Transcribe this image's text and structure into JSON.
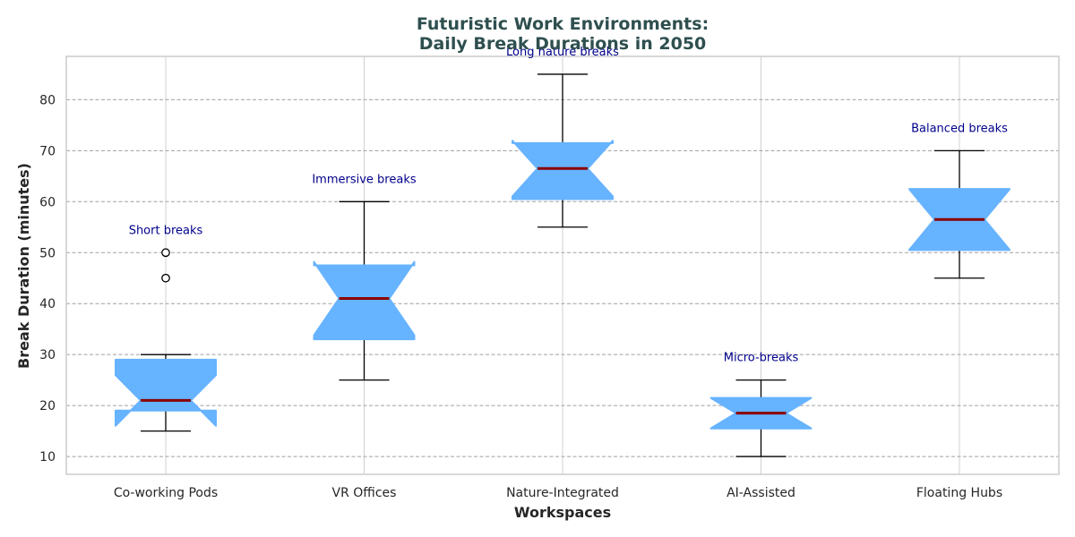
{
  "chart_data": {
    "type": "boxplot",
    "title": "Futuristic Work Environments:\nDaily Break Durations in 2050",
    "xlabel": "Workspaces",
    "ylabel": "Break Duration (minutes)",
    "ylim": [
      6.5,
      88.5
    ],
    "yticks": [
      10,
      20,
      30,
      40,
      50,
      60,
      70,
      80
    ],
    "grid": true,
    "notched": true,
    "categories": [
      "Co-working Pods",
      "VR Offices",
      "Nature-Integrated",
      "AI-Assisted",
      "Floating Hubs"
    ],
    "boxes": [
      {
        "category": "Co-working Pods",
        "whisker_low": 15,
        "q1": 19,
        "median": 21,
        "q3": 29,
        "whisker_high": 30,
        "outliers": [
          45,
          50
        ],
        "annotation": "Short breaks"
      },
      {
        "category": "VR Offices",
        "whisker_low": 25,
        "q1": 33,
        "median": 41,
        "q3": 47.5,
        "whisker_high": 60,
        "outliers": [],
        "annotation": "Immersive breaks"
      },
      {
        "category": "Nature-Integrated",
        "whisker_low": 55,
        "q1": 60.5,
        "median": 66.5,
        "q3": 71.5,
        "whisker_high": 85,
        "outliers": [],
        "annotation": "Long nature breaks"
      },
      {
        "category": "AI-Assisted",
        "whisker_low": 10,
        "q1": 15.5,
        "median": 18.5,
        "q3": 21.5,
        "whisker_high": 25,
        "outliers": [],
        "annotation": "Micro-breaks"
      },
      {
        "category": "Floating Hubs",
        "whisker_low": 45,
        "q1": 50.5,
        "median": 56.5,
        "q3": 62.5,
        "whisker_high": 70,
        "outliers": [],
        "annotation": "Balanced breaks"
      }
    ],
    "colors": {
      "box_fill": "#66b3ff",
      "median": "#8b0000",
      "whisker": "#000000",
      "title": "#2f4f4f",
      "annotation": "#00008b",
      "grid_horizontal": "#a0a0a0",
      "grid_vertical": "#d0d0d0",
      "spine": "#cccccc"
    }
  }
}
